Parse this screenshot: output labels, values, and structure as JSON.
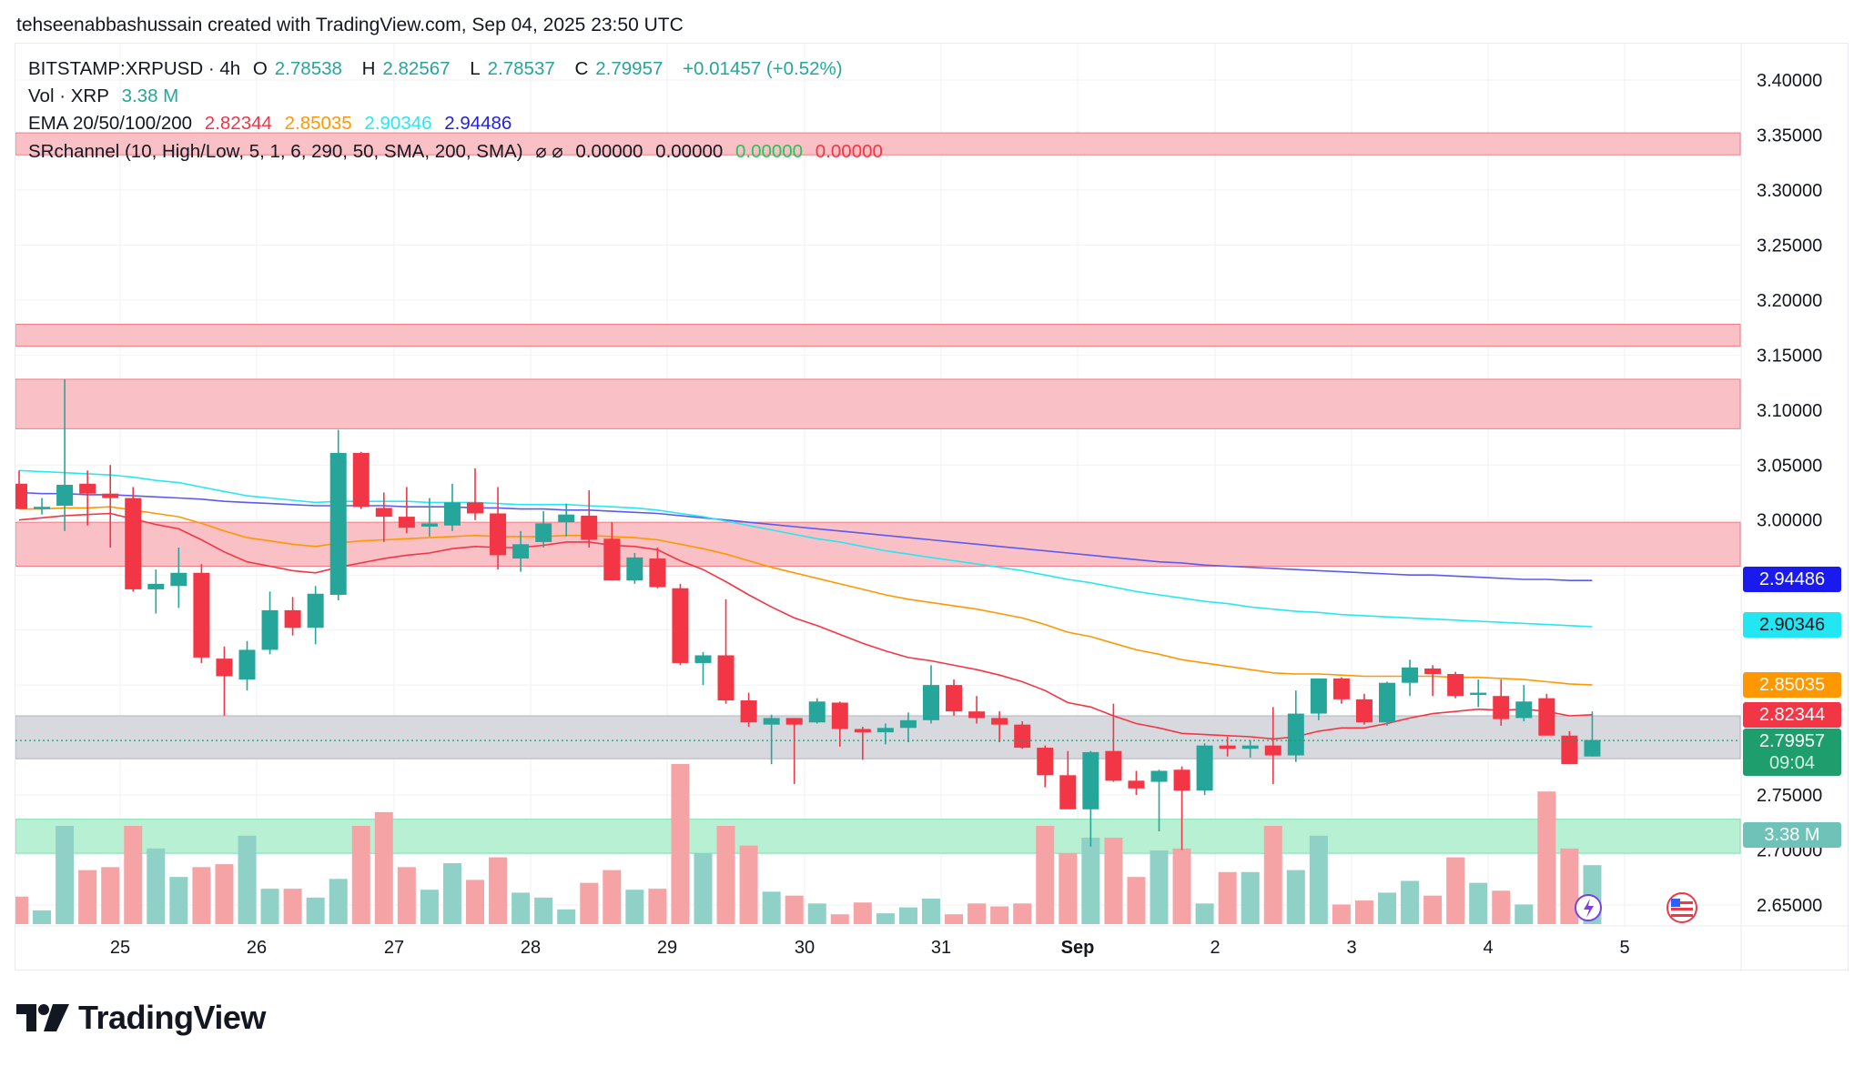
{
  "header": {
    "credit": "tehseenabbashussain created with TradingView.com, Sep 04, 2025 23:50 UTC"
  },
  "legend": {
    "symbol": "BITSTAMP:XRPUSD · 4h",
    "open_label": "O",
    "open": "2.78538",
    "high_label": "H",
    "high": "2.82567",
    "low_label": "L",
    "low": "2.78537",
    "close_label": "C",
    "close": "2.79957",
    "change": "+0.01457 (+0.52%)",
    "vol_label": "Vol · XRP",
    "vol": "3.38 M",
    "ema_label": "EMA 20/50/100/200",
    "ema20": "2.82344",
    "ema50": "2.85035",
    "ema100": "2.90346",
    "ema200": "2.94486",
    "sr_label": "SRchannel (10, High/Low, 5, 1, 6, 290, 50, SMA, 200, SMA)",
    "sr_symbols": "⌀ ⌀",
    "sr_v1": "0.00000",
    "sr_v2": "0.00000",
    "sr_v3": "0.00000",
    "sr_v4": "0.00000"
  },
  "price_tags": {
    "ema200": "2.94486",
    "ema100": "2.90346",
    "ema50": "2.85035",
    "ema20": "2.82344",
    "last": "2.79957",
    "countdown": "09:04",
    "volume": "3.38 M"
  },
  "colors": {
    "up": "#26a69a",
    "down": "#f23645",
    "vol_up": "#8fd0c7",
    "vol_down": "#f6a3a6",
    "ema20": "#f23645",
    "ema50": "#ff9800",
    "ema100": "#26e7f3",
    "ema200": "#2962ff",
    "res_zone": "#f9c1c5",
    "sup_zone": "#b7f0d3",
    "grey_zone": "#d8d9de"
  },
  "brand": {
    "name": "TradingView",
    "logo_icon": "tradingview-logo-icon"
  },
  "chart_data": {
    "type": "candlestick",
    "title": "BITSTAMP:XRPUSD · 4h",
    "timeframe": "4h",
    "x_ticks": [
      "25",
      "26",
      "27",
      "28",
      "29",
      "30",
      "31",
      "Sep",
      "2",
      "3",
      "4",
      "5"
    ],
    "y_ticks": [
      "3.40000",
      "3.35000",
      "3.30000",
      "3.25000",
      "3.20000",
      "3.15000",
      "3.10000",
      "3.05000",
      "3.00000",
      "2.95000",
      "2.90000",
      "2.85000",
      "2.80000",
      "2.75000",
      "2.70000",
      "2.65000"
    ],
    "ylim": [
      2.63,
      3.42
    ],
    "candles": [
      {
        "o": 3.033,
        "h": 3.045,
        "l": 3.01,
        "c": 3.01
      },
      {
        "o": 3.01,
        "h": 3.02,
        "l": 3.005,
        "c": 3.012
      },
      {
        "o": 3.013,
        "h": 3.128,
        "l": 2.99,
        "c": 3.032
      },
      {
        "o": 3.033,
        "h": 3.045,
        "l": 2.995,
        "c": 3.024
      },
      {
        "o": 3.024,
        "h": 3.05,
        "l": 2.975,
        "c": 3.02
      },
      {
        "o": 3.02,
        "h": 3.03,
        "l": 2.935,
        "c": 2.937
      },
      {
        "o": 2.937,
        "h": 2.955,
        "l": 2.915,
        "c": 2.942
      },
      {
        "o": 2.94,
        "h": 2.975,
        "l": 2.92,
        "c": 2.952
      },
      {
        "o": 2.952,
        "h": 2.96,
        "l": 2.87,
        "c": 2.875
      },
      {
        "o": 2.874,
        "h": 2.885,
        "l": 2.822,
        "c": 2.858
      },
      {
        "o": 2.855,
        "h": 2.89,
        "l": 2.845,
        "c": 2.882
      },
      {
        "o": 2.882,
        "h": 2.935,
        "l": 2.878,
        "c": 2.918
      },
      {
        "o": 2.918,
        "h": 2.93,
        "l": 2.895,
        "c": 2.902
      },
      {
        "o": 2.902,
        "h": 2.94,
        "l": 2.887,
        "c": 2.933
      },
      {
        "o": 2.932,
        "h": 3.082,
        "l": 2.927,
        "c": 3.061
      },
      {
        "o": 3.061,
        "h": 3.062,
        "l": 3.01,
        "c": 3.012
      },
      {
        "o": 3.011,
        "h": 3.025,
        "l": 2.98,
        "c": 3.003
      },
      {
        "o": 3.003,
        "h": 3.03,
        "l": 2.988,
        "c": 2.993
      },
      {
        "o": 2.994,
        "h": 3.02,
        "l": 2.985,
        "c": 2.997
      },
      {
        "o": 2.995,
        "h": 3.033,
        "l": 2.99,
        "c": 3.016
      },
      {
        "o": 3.016,
        "h": 3.047,
        "l": 3.0,
        "c": 3.006
      },
      {
        "o": 3.006,
        "h": 3.03,
        "l": 2.955,
        "c": 2.968
      },
      {
        "o": 2.965,
        "h": 2.99,
        "l": 2.953,
        "c": 2.978
      },
      {
        "o": 2.98,
        "h": 3.008,
        "l": 2.975,
        "c": 2.997
      },
      {
        "o": 2.998,
        "h": 3.015,
        "l": 2.985,
        "c": 3.005
      },
      {
        "o": 3.004,
        "h": 3.027,
        "l": 2.975,
        "c": 2.982
      },
      {
        "o": 2.983,
        "h": 2.998,
        "l": 2.945,
        "c": 2.945
      },
      {
        "o": 2.945,
        "h": 2.97,
        "l": 2.942,
        "c": 2.966
      },
      {
        "o": 2.965,
        "h": 2.975,
        "l": 2.938,
        "c": 2.939
      },
      {
        "o": 2.938,
        "h": 2.942,
        "l": 2.868,
        "c": 2.87
      },
      {
        "o": 2.87,
        "h": 2.88,
        "l": 2.85,
        "c": 2.877
      },
      {
        "o": 2.877,
        "h": 2.928,
        "l": 2.833,
        "c": 2.836
      },
      {
        "o": 2.836,
        "h": 2.843,
        "l": 2.812,
        "c": 2.816
      },
      {
        "o": 2.814,
        "h": 2.823,
        "l": 2.778,
        "c": 2.82
      },
      {
        "o": 2.82,
        "h": 2.82,
        "l": 2.76,
        "c": 2.814
      },
      {
        "o": 2.816,
        "h": 2.838,
        "l": 2.815,
        "c": 2.835
      },
      {
        "o": 2.834,
        "h": 2.835,
        "l": 2.794,
        "c": 2.81
      },
      {
        "o": 2.81,
        "h": 2.812,
        "l": 2.782,
        "c": 2.807
      },
      {
        "o": 2.807,
        "h": 2.815,
        "l": 2.796,
        "c": 2.811
      },
      {
        "o": 2.811,
        "h": 2.825,
        "l": 2.798,
        "c": 2.818
      },
      {
        "o": 2.818,
        "h": 2.868,
        "l": 2.815,
        "c": 2.85
      },
      {
        "o": 2.85,
        "h": 2.855,
        "l": 2.822,
        "c": 2.826
      },
      {
        "o": 2.826,
        "h": 2.84,
        "l": 2.815,
        "c": 2.82
      },
      {
        "o": 2.82,
        "h": 2.826,
        "l": 2.798,
        "c": 2.814
      },
      {
        "o": 2.814,
        "h": 2.817,
        "l": 2.792,
        "c": 2.793
      },
      {
        "o": 2.793,
        "h": 2.795,
        "l": 2.757,
        "c": 2.768
      },
      {
        "o": 2.768,
        "h": 2.79,
        "l": 2.74,
        "c": 2.737
      },
      {
        "o": 2.737,
        "h": 2.79,
        "l": 2.703,
        "c": 2.789
      },
      {
        "o": 2.79,
        "h": 2.833,
        "l": 2.762,
        "c": 2.763
      },
      {
        "o": 2.763,
        "h": 2.772,
        "l": 2.75,
        "c": 2.756
      },
      {
        "o": 2.762,
        "h": 2.773,
        "l": 2.717,
        "c": 2.772
      },
      {
        "o": 2.773,
        "h": 2.776,
        "l": 2.7,
        "c": 2.754
      },
      {
        "o": 2.754,
        "h": 2.797,
        "l": 2.75,
        "c": 2.795
      },
      {
        "o": 2.795,
        "h": 2.803,
        "l": 2.785,
        "c": 2.792
      },
      {
        "o": 2.792,
        "h": 2.8,
        "l": 2.784,
        "c": 2.795
      },
      {
        "o": 2.795,
        "h": 2.83,
        "l": 2.76,
        "c": 2.786
      },
      {
        "o": 2.786,
        "h": 2.845,
        "l": 2.78,
        "c": 2.824
      },
      {
        "o": 2.824,
        "h": 2.855,
        "l": 2.818,
        "c": 2.856
      },
      {
        "o": 2.856,
        "h": 2.857,
        "l": 2.833,
        "c": 2.837
      },
      {
        "o": 2.837,
        "h": 2.842,
        "l": 2.814,
        "c": 2.816
      },
      {
        "o": 2.816,
        "h": 2.853,
        "l": 2.813,
        "c": 2.852
      },
      {
        "o": 2.852,
        "h": 2.873,
        "l": 2.84,
        "c": 2.866
      },
      {
        "o": 2.865,
        "h": 2.868,
        "l": 2.84,
        "c": 2.86
      },
      {
        "o": 2.86,
        "h": 2.862,
        "l": 2.838,
        "c": 2.84
      },
      {
        "o": 2.841,
        "h": 2.855,
        "l": 2.83,
        "c": 2.843
      },
      {
        "o": 2.84,
        "h": 2.855,
        "l": 2.813,
        "c": 2.819
      },
      {
        "o": 2.82,
        "h": 2.85,
        "l": 2.817,
        "c": 2.835
      },
      {
        "o": 2.838,
        "h": 2.842,
        "l": 2.805,
        "c": 2.804
      },
      {
        "o": 2.804,
        "h": 2.808,
        "l": 2.778,
        "c": 2.778
      },
      {
        "o": 2.785,
        "h": 2.826,
        "l": 2.785,
        "c": 2.8
      }
    ],
    "volumes": [
      0.28,
      0.14,
      1.0,
      0.55,
      0.58,
      1.0,
      0.77,
      0.48,
      0.58,
      0.61,
      0.9,
      0.36,
      0.36,
      0.27,
      0.46,
      1.0,
      1.14,
      0.58,
      0.35,
      0.62,
      0.45,
      0.68,
      0.32,
      0.27,
      0.15,
      0.42,
      0.55,
      0.35,
      0.36,
      1.63,
      0.72,
      1.0,
      0.8,
      0.33,
      0.29,
      0.21,
      0.1,
      0.22,
      0.11,
      0.17,
      0.26,
      0.1,
      0.21,
      0.18,
      0.21,
      1.0,
      0.72,
      0.88,
      0.88,
      0.48,
      0.75,
      0.77,
      0.21,
      0.53,
      0.53,
      1.0,
      0.55,
      0.9,
      0.2,
      0.24,
      0.32,
      0.44,
      0.29,
      0.68,
      0.42,
      0.34,
      0.2,
      1.35,
      0.77,
      0.6
    ],
    "ema20": [
      3.0,
      3.002,
      3.004,
      3.005,
      3.006,
      3.001,
      2.996,
      2.992,
      2.982,
      2.971,
      2.962,
      2.958,
      2.954,
      2.952,
      2.957,
      2.961,
      2.965,
      2.968,
      2.97,
      2.974,
      2.976,
      2.975,
      2.975,
      2.977,
      2.98,
      2.98,
      2.977,
      2.976,
      2.973,
      2.963,
      2.955,
      2.944,
      2.932,
      2.921,
      2.911,
      2.904,
      2.896,
      2.888,
      2.881,
      2.875,
      2.872,
      2.868,
      2.864,
      2.859,
      2.853,
      2.845,
      2.834,
      2.83,
      2.822,
      2.815,
      2.811,
      2.806,
      2.805,
      2.804,
      2.803,
      2.801,
      2.803,
      2.808,
      2.811,
      2.811,
      2.815,
      2.82,
      2.824,
      2.826,
      2.828,
      2.827,
      2.828,
      2.826,
      2.822,
      2.823
    ],
    "ema50": [
      3.01,
      3.01,
      3.011,
      3.011,
      3.012,
      3.009,
      3.006,
      3.003,
      2.997,
      2.99,
      2.984,
      2.981,
      2.978,
      2.976,
      2.979,
      2.981,
      2.982,
      2.983,
      2.984,
      2.985,
      2.986,
      2.985,
      2.985,
      2.985,
      2.986,
      2.986,
      2.985,
      2.984,
      2.982,
      2.978,
      2.974,
      2.969,
      2.963,
      2.957,
      2.952,
      2.947,
      2.942,
      2.937,
      2.932,
      2.928,
      2.925,
      2.922,
      2.919,
      2.915,
      2.911,
      2.905,
      2.898,
      2.894,
      2.888,
      2.882,
      2.878,
      2.873,
      2.87,
      2.867,
      2.864,
      2.861,
      2.86,
      2.86,
      2.859,
      2.858,
      2.858,
      2.858,
      2.858,
      2.857,
      2.857,
      2.856,
      2.855,
      2.853,
      2.851,
      2.85
    ],
    "ema100": [
      3.045,
      3.044,
      3.043,
      3.042,
      3.041,
      3.039,
      3.036,
      3.034,
      3.03,
      3.026,
      3.022,
      3.02,
      3.018,
      3.016,
      3.017,
      3.017,
      3.017,
      3.017,
      3.016,
      3.016,
      3.016,
      3.015,
      3.014,
      3.014,
      3.014,
      3.013,
      3.012,
      3.011,
      3.009,
      3.006,
      3.003,
      2.999,
      2.995,
      2.991,
      2.987,
      2.983,
      2.98,
      2.976,
      2.972,
      2.969,
      2.966,
      2.963,
      2.96,
      2.957,
      2.954,
      2.95,
      2.946,
      2.943,
      2.939,
      2.935,
      2.932,
      2.929,
      2.926,
      2.924,
      2.921,
      2.919,
      2.917,
      2.916,
      2.914,
      2.913,
      2.912,
      2.911,
      2.91,
      2.909,
      2.908,
      2.907,
      2.906,
      2.905,
      2.904,
      2.903
    ],
    "ema200": [
      3.025,
      3.024,
      3.024,
      3.023,
      3.023,
      3.022,
      3.021,
      3.02,
      3.019,
      3.017,
      3.016,
      3.015,
      3.014,
      3.013,
      3.013,
      3.013,
      3.013,
      3.012,
      3.012,
      3.012,
      3.011,
      3.011,
      3.01,
      3.01,
      3.009,
      3.009,
      3.008,
      3.007,
      3.006,
      3.004,
      3.002,
      3.0,
      2.998,
      2.996,
      2.994,
      2.992,
      2.99,
      2.988,
      2.986,
      2.984,
      2.982,
      2.98,
      2.978,
      2.976,
      2.974,
      2.972,
      2.97,
      2.968,
      2.966,
      2.964,
      2.962,
      2.961,
      2.959,
      2.958,
      2.957,
      2.956,
      2.955,
      2.954,
      2.953,
      2.952,
      2.951,
      2.95,
      2.95,
      2.949,
      2.948,
      2.947,
      2.946,
      2.946,
      2.945,
      2.945
    ],
    "resistance_zones": [
      [
        3.332,
        3.352
      ],
      [
        3.158,
        3.178
      ],
      [
        3.083,
        3.128
      ],
      [
        2.958,
        2.998
      ]
    ],
    "neutral_zones": [
      [
        2.783,
        2.822
      ]
    ],
    "support_zones": [
      [
        2.697,
        2.728
      ]
    ],
    "last_price": 2.79957
  }
}
